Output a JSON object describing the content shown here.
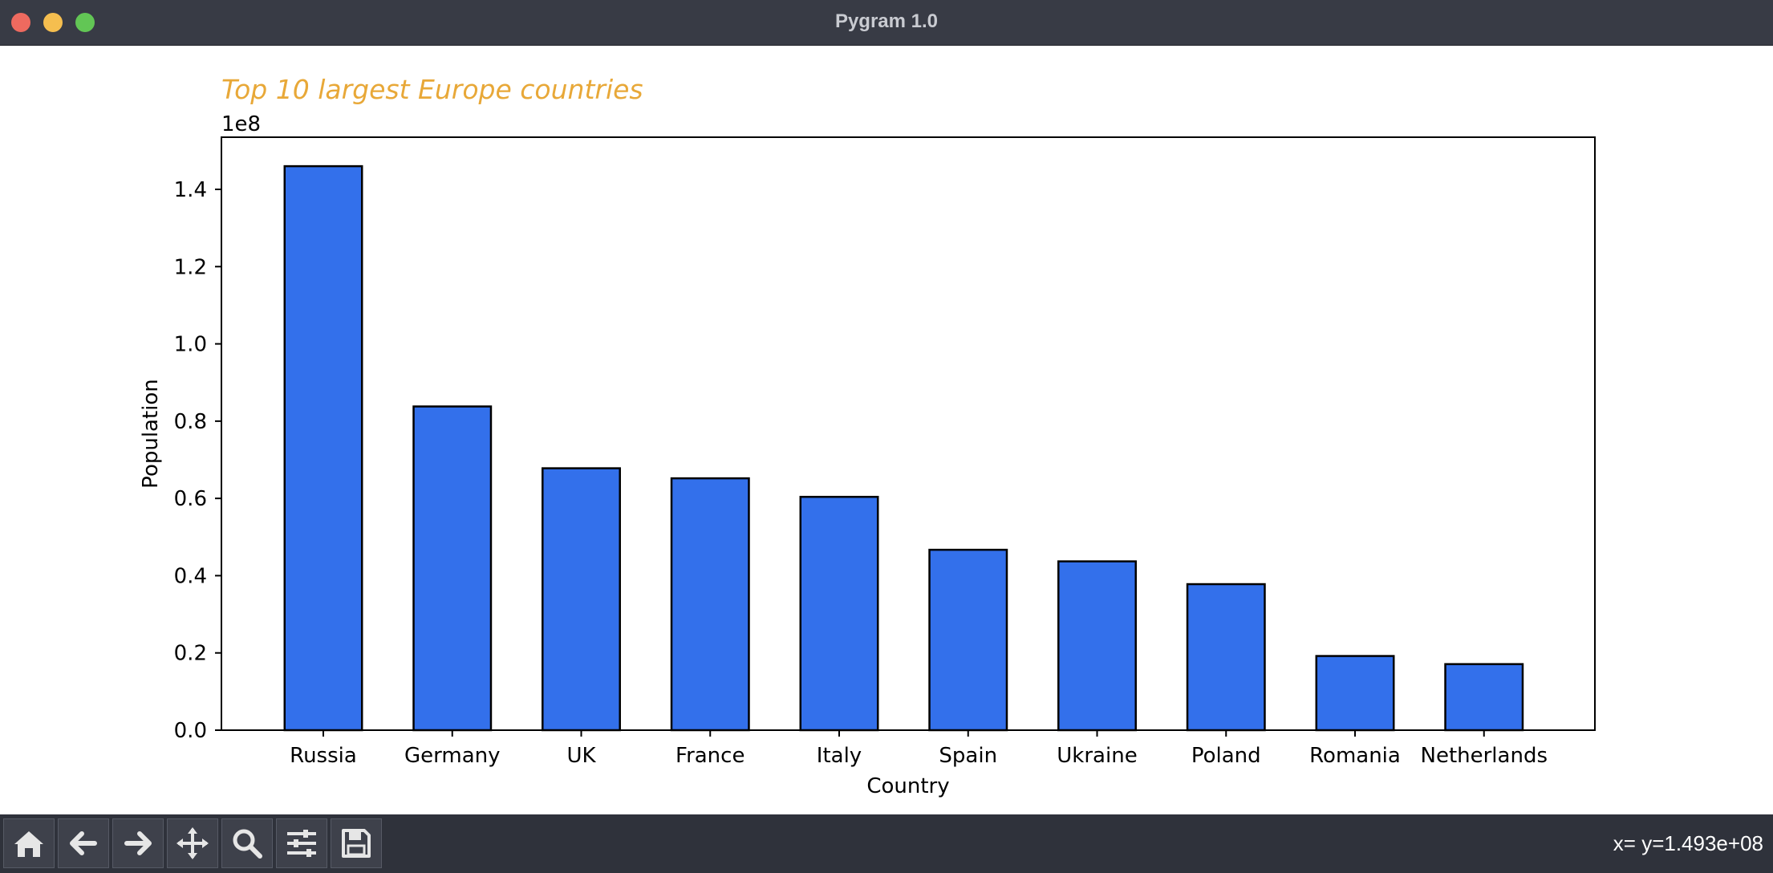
{
  "window": {
    "title": "Pygram 1.0"
  },
  "toolbar": {
    "buttons": [
      {
        "name": "home-button",
        "icon": "home-icon"
      },
      {
        "name": "back-button",
        "icon": "arrow-left-icon"
      },
      {
        "name": "forward-button",
        "icon": "arrow-right-icon"
      },
      {
        "name": "pan-button",
        "icon": "move-icon"
      },
      {
        "name": "zoom-button",
        "icon": "search-icon"
      },
      {
        "name": "configure-button",
        "icon": "sliders-icon"
      },
      {
        "name": "save-button",
        "icon": "save-icon"
      }
    ],
    "coordinates": "x= y=1.493e+08"
  },
  "chart_data": {
    "type": "bar",
    "title": "Top 10 largest Europe countries",
    "title_color": "#e8a838",
    "xlabel": "Country",
    "ylabel": "Population",
    "offset_label": "1e8",
    "bar_color": "#3370eb",
    "edge_color": "#000000",
    "categories": [
      "Russia",
      "Germany",
      "UK",
      "France",
      "Italy",
      "Spain",
      "Ukraine",
      "Poland",
      "Romania",
      "Netherlands"
    ],
    "values": [
      146000000,
      83800000,
      67800000,
      65200000,
      60400000,
      46700000,
      43700000,
      37800000,
      19200000,
      17100000
    ],
    "ylim": [
      0,
      153500000
    ],
    "yticks": [
      0,
      20000000,
      40000000,
      60000000,
      80000000,
      100000000,
      120000000,
      140000000
    ],
    "ytick_labels": [
      "0.0",
      "0.2",
      "0.4",
      "0.6",
      "0.8",
      "1.0",
      "1.2",
      "1.4"
    ],
    "grid": false
  }
}
